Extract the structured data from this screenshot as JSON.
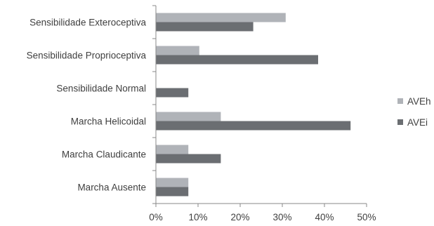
{
  "chart_data": {
    "type": "bar",
    "orientation": "horizontal",
    "categories": [
      "Sensibilidade Exteroceptiva",
      "Sensibilidade Proprioceptiva",
      "Sensibilidade Normal",
      "Marcha Helicoidal",
      "Marcha Claudicante",
      "Marcha Ausente"
    ],
    "series": [
      {
        "name": "AVEh",
        "color": "#b0b3b8",
        "values": [
          30.8,
          10.3,
          0,
          15.4,
          7.7,
          7.7
        ]
      },
      {
        "name": "AVEi",
        "color": "#6b6e72",
        "values": [
          23.1,
          38.5,
          7.7,
          46.2,
          15.4,
          7.7
        ]
      }
    ],
    "xlim": [
      0,
      50
    ],
    "xticks": [
      "0%",
      "10%",
      "20%",
      "30%",
      "40%",
      "50%"
    ],
    "grid": false,
    "legend_position": "right"
  }
}
